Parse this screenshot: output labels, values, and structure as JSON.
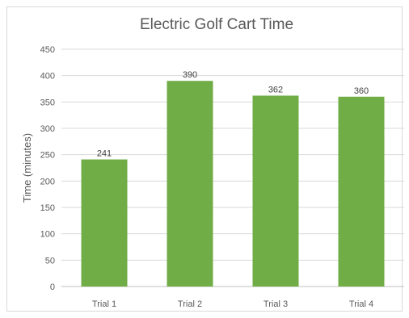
{
  "chart_data": {
    "type": "bar",
    "title": "Electric Golf Cart Time",
    "xlabel": "",
    "ylabel": "Time (minutes)",
    "categories": [
      "Trial 1",
      "Trial 2",
      "Trial 3",
      "Trial 4"
    ],
    "values": [
      241,
      390,
      362,
      360
    ],
    "ylim": [
      0,
      450
    ],
    "yticks": [
      0,
      50,
      100,
      150,
      200,
      250,
      300,
      350,
      400,
      450
    ],
    "grid": true,
    "legend": "none",
    "data_labels": true,
    "bar_color": "#70ad47"
  }
}
